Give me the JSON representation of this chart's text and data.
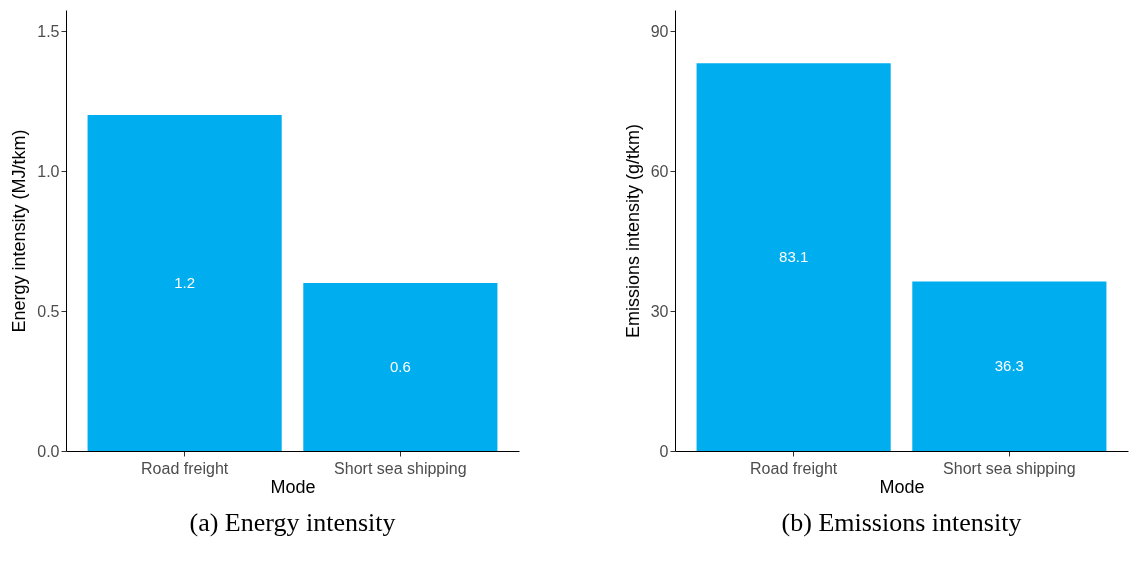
{
  "chart_data": [
    {
      "type": "bar",
      "title": "(a) Energy intensity",
      "xlabel": "Mode",
      "ylabel": "Energy intensity (MJ/tkm)",
      "categories": [
        "Road freight",
        "Short sea shipping"
      ],
      "values": [
        1.2,
        0.6
      ],
      "color": "#00aeef",
      "ylim": [
        0,
        1.575
      ],
      "yticks": [
        {
          "value": 0,
          "label": "0.0"
        },
        0.5,
        {
          "value": 1,
          "label": "1.0"
        },
        1.5
      ],
      "grid": false,
      "data_labels": true
    },
    {
      "type": "bar",
      "title": "(b) Emissions intensity",
      "xlabel": "Mode",
      "ylabel": "Emissions intensity (g/tkm)",
      "categories": [
        "Road freight",
        "Short sea shipping"
      ],
      "values": [
        83.1,
        36.3
      ],
      "color": "#00aeef",
      "ylim": [
        0,
        94.5
      ],
      "yticks": [
        0,
        30,
        60,
        90
      ],
      "grid": false,
      "data_labels": true
    }
  ]
}
